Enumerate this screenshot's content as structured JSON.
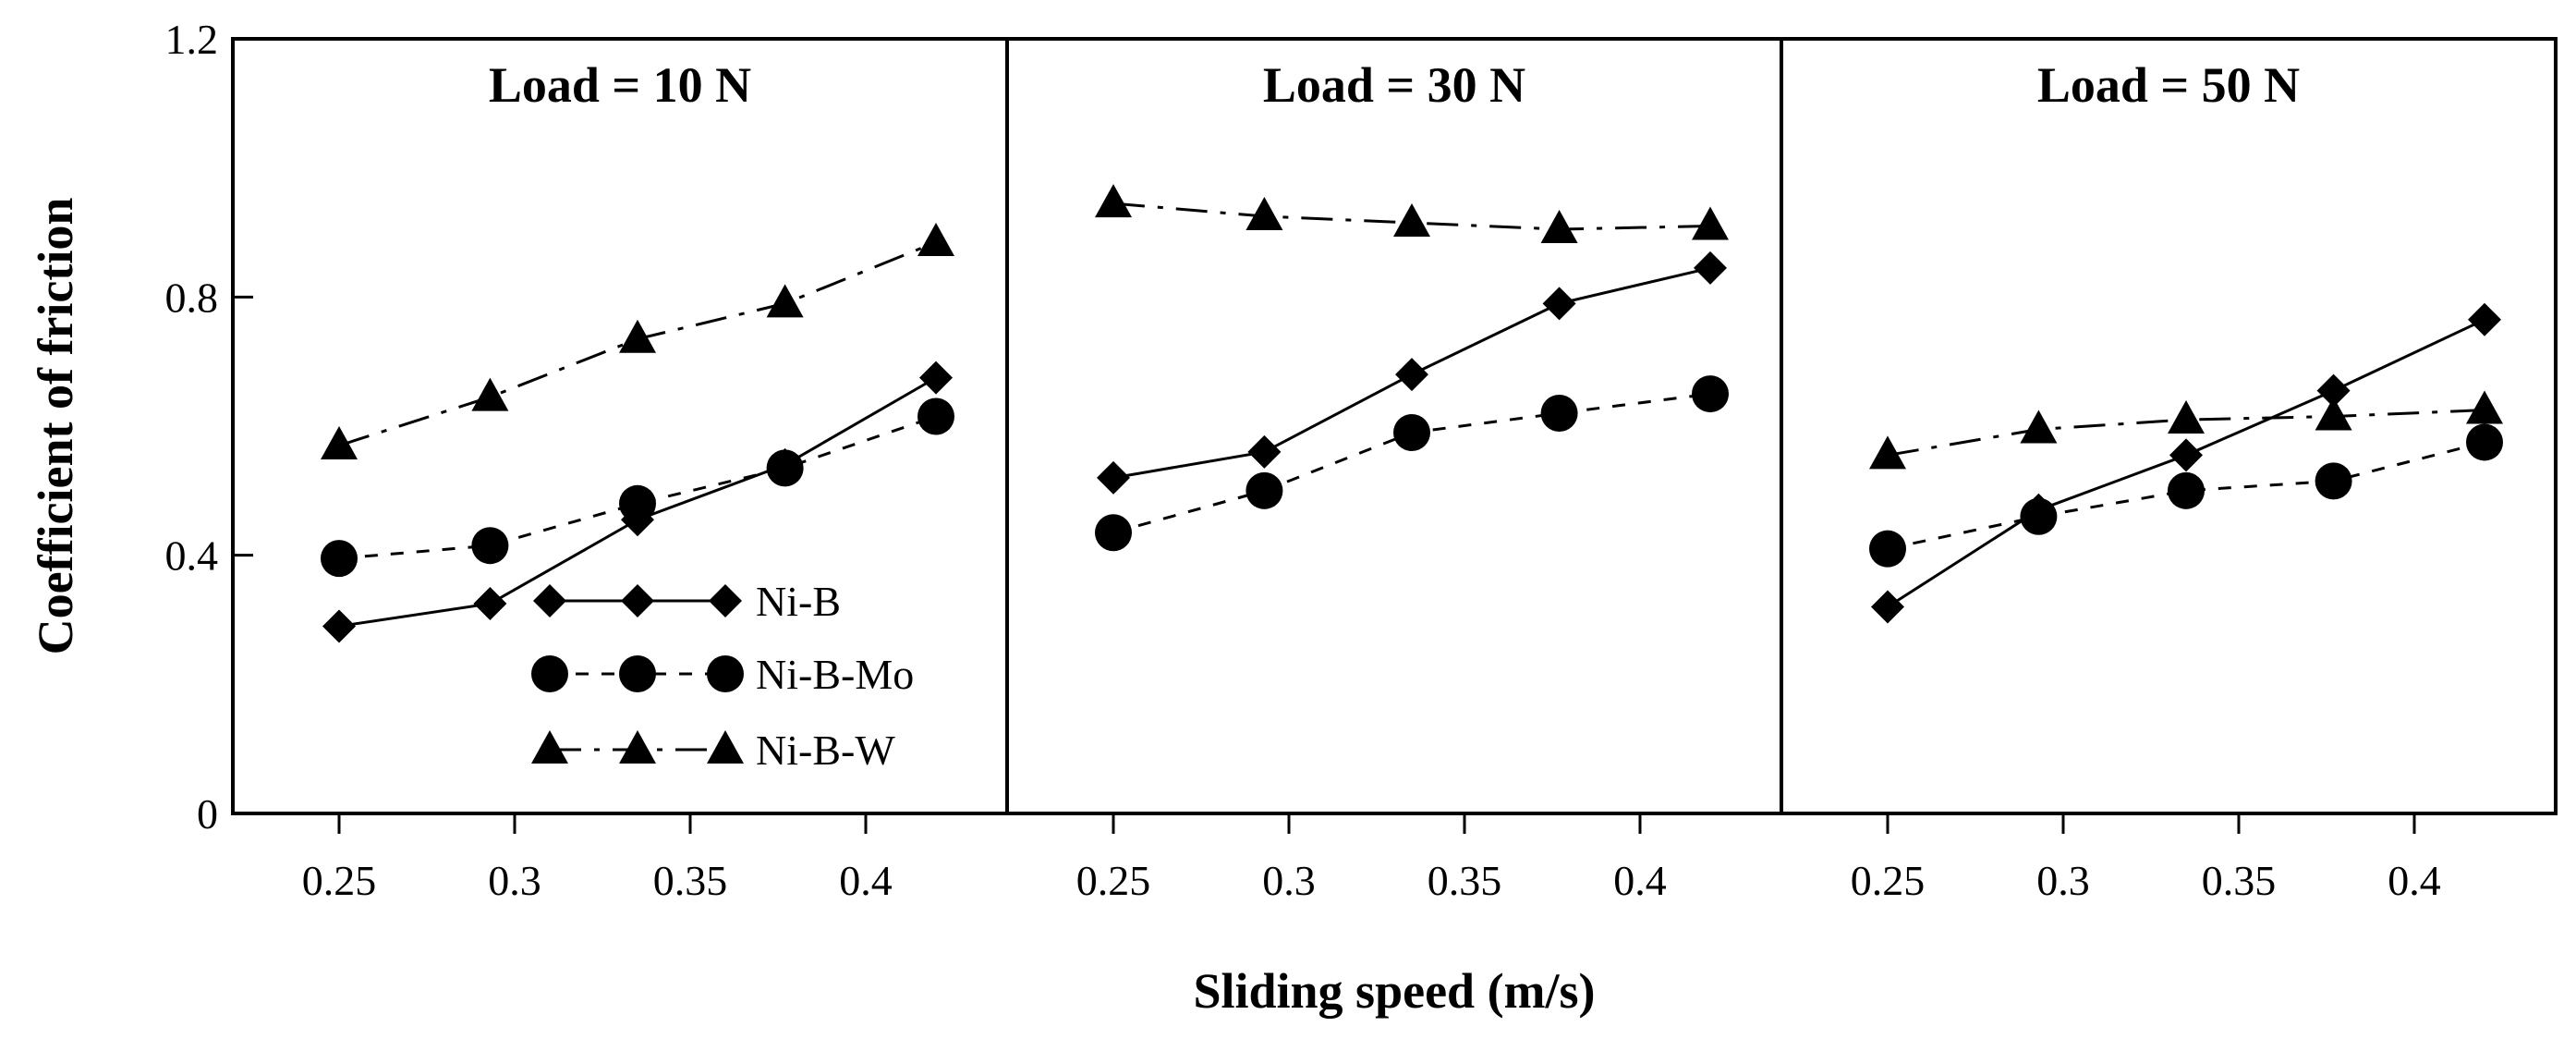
{
  "chart_data": {
    "type": "line",
    "panels": [
      {
        "title": "Load = 10 N",
        "series": [
          {
            "name": "Ni-B",
            "x": [
              0.25,
              0.293,
              0.335,
              0.377,
              0.42
            ],
            "values": [
              0.29,
              0.325,
              0.455,
              0.54,
              0.675
            ]
          },
          {
            "name": "Ni-B-Mo",
            "x": [
              0.25,
              0.293,
              0.335,
              0.377,
              0.42
            ],
            "values": [
              0.395,
              0.415,
              0.48,
              0.535,
              0.615
            ]
          },
          {
            "name": "Ni-B-W",
            "x": [
              0.25,
              0.293,
              0.335,
              0.377,
              0.42
            ],
            "values": [
              0.57,
              0.645,
              0.735,
              0.79,
              0.885
            ]
          }
        ]
      },
      {
        "title": "Load = 30 N",
        "series": [
          {
            "name": "Ni-B",
            "x": [
              0.25,
              0.293,
              0.335,
              0.377,
              0.42
            ],
            "values": [
              0.52,
              0.56,
              0.68,
              0.79,
              0.845
            ]
          },
          {
            "name": "Ni-B-Mo",
            "x": [
              0.25,
              0.293,
              0.335,
              0.377,
              0.42
            ],
            "values": [
              0.435,
              0.5,
              0.59,
              0.62,
              0.65
            ]
          },
          {
            "name": "Ni-B-W",
            "x": [
              0.25,
              0.293,
              0.335,
              0.377,
              0.42
            ],
            "values": [
              0.945,
              0.925,
              0.915,
              0.905,
              0.91
            ]
          }
        ]
      },
      {
        "title": "Load = 50 N",
        "series": [
          {
            "name": "Ni-B",
            "x": [
              0.25,
              0.293,
              0.335,
              0.377,
              0.42
            ],
            "values": [
              0.32,
              0.47,
              0.555,
              0.655,
              0.765
            ]
          },
          {
            "name": "Ni-B-Mo",
            "x": [
              0.25,
              0.293,
              0.335,
              0.377,
              0.42
            ],
            "values": [
              0.41,
              0.46,
              0.5,
              0.515,
              0.575
            ]
          },
          {
            "name": "Ni-B-W",
            "x": [
              0.25,
              0.293,
              0.335,
              0.377,
              0.42
            ],
            "values": [
              0.555,
              0.595,
              0.61,
              0.615,
              0.625
            ]
          }
        ]
      }
    ],
    "xlabel": "Sliding speed (m/s)",
    "ylabel": "Coefficient of friction",
    "xticks": [
      0.25,
      0.3,
      0.35,
      0.4
    ],
    "xtick_labels": [
      "0.25",
      "0.3",
      "0.35",
      "0.4"
    ],
    "yticks": [
      0,
      0.4,
      0.8,
      1.2
    ],
    "ytick_labels": [
      "0",
      "0.4",
      "0.8",
      "1.2"
    ],
    "xlim": [
      0.22,
      0.44
    ],
    "ylim": [
      0,
      1.2
    ],
    "legend": [
      "Ni-B",
      "Ni-B-Mo",
      "Ni-B-W"
    ],
    "legend_location": "bottom-left of first panel",
    "grid": false
  }
}
